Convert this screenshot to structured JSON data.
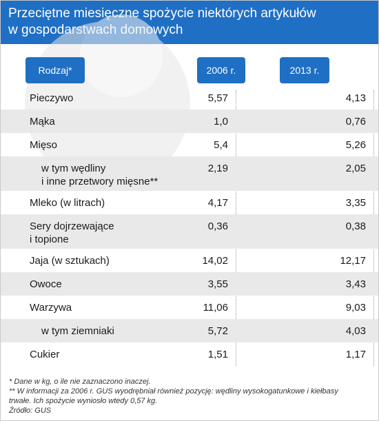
{
  "title": {
    "line1": "Przeciętne miesięczne spożycie niektórych artykułów",
    "line2": "w gospodarstwach domowych"
  },
  "columns": {
    "label": "Rodzaj*",
    "col1": "2006 r.",
    "col2": "2013 r."
  },
  "chart_data": {
    "type": "table",
    "columns": [
      "Rodzaj*",
      "2006 r.",
      "2013 r."
    ],
    "rows": [
      {
        "label": [
          "Pieczywo"
        ],
        "v2006": "5,57",
        "v2013": "4,13",
        "indent": false
      },
      {
        "label": [
          "Mąka"
        ],
        "v2006": "1,0",
        "v2013": "0,76",
        "indent": false
      },
      {
        "label": [
          "Mięso"
        ],
        "v2006": "5,4",
        "v2013": "5,26",
        "indent": false
      },
      {
        "label": [
          "w tym wędliny",
          "i inne przetwory mięsne**"
        ],
        "v2006": "2,19",
        "v2013": "2,05",
        "indent": true
      },
      {
        "label": [
          "Mleko (w litrach)"
        ],
        "v2006": "4,17",
        "v2013": "3,35",
        "indent": false
      },
      {
        "label": [
          "Sery dojrzewające",
          "i topione"
        ],
        "v2006": "0,36",
        "v2013": "0,38",
        "indent": false
      },
      {
        "label": [
          "Jaja (w sztukach)"
        ],
        "v2006": "14,02",
        "v2013": "12,17",
        "indent": false
      },
      {
        "label": [
          "Owoce"
        ],
        "v2006": "3,55",
        "v2013": "3,43",
        "indent": false
      },
      {
        "label": [
          "Warzywa"
        ],
        "v2006": "11,06",
        "v2013": "9,03",
        "indent": false
      },
      {
        "label": [
          "w tym ziemniaki"
        ],
        "v2006": "5,72",
        "v2013": "4,03",
        "indent": true
      },
      {
        "label": [
          "Cukier"
        ],
        "v2006": "1,51",
        "v2013": "1,17",
        "indent": false
      }
    ]
  },
  "footnotes": {
    "line1": "* Dane w kg, o ile nie zaznaczono inaczej.",
    "line2": "** W informacji za 2006 r. GUS wyodrębniał również pozycję: wędliny wysokogatunkowe i kiełbasy",
    "line3": "trwałe. Ich spożycie wyniosło wtedy 0,57 kg.",
    "line4": "Źródło: GUS"
  },
  "colors": {
    "header": "#1f6fc4",
    "shade": "#e9e9e9"
  }
}
